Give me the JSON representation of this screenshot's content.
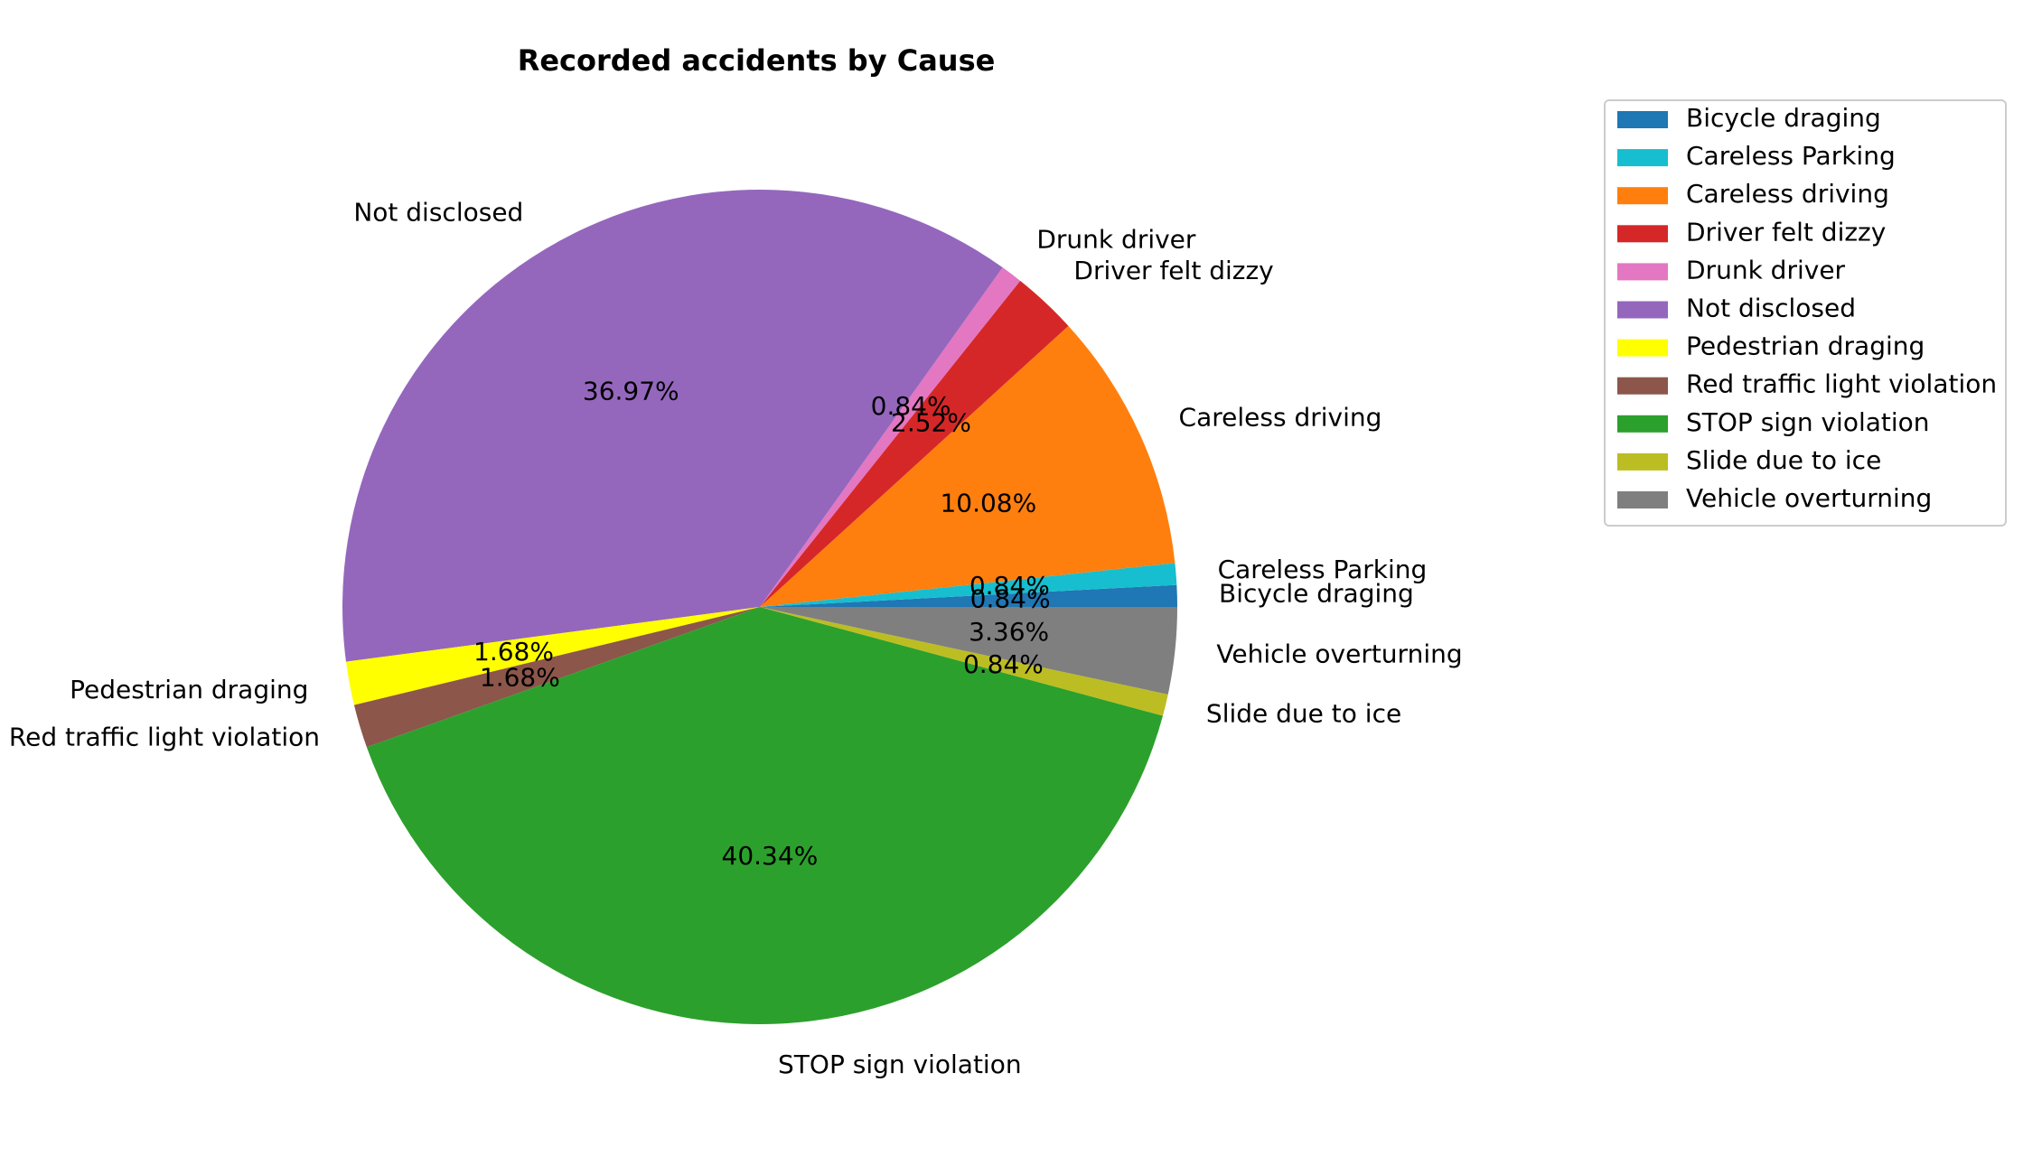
{
  "chart_data": {
    "type": "pie",
    "title": "Recorded accidents by Cause",
    "categories": [
      "Bicycle draging",
      "Careless Parking",
      "Careless driving",
      "Driver felt dizzy",
      "Drunk driver",
      "Not disclosed",
      "Pedestrian draging",
      "Red traffic light violation",
      "STOP sign violation",
      "Slide due to ice",
      "Vehicle overturning"
    ],
    "values": [
      0.84,
      0.84,
      10.08,
      2.52,
      0.84,
      36.97,
      1.68,
      1.68,
      40.34,
      0.84,
      3.36
    ],
    "percent_labels": [
      "0.84%",
      "0.84%",
      "10.08%",
      "2.52%",
      "0.84%",
      "36.97%",
      "1.68%",
      "1.68%",
      "40.34%",
      "0.84%",
      "3.36%"
    ],
    "colors": [
      "#1f77b4",
      "#17becf",
      "#ff7f0e",
      "#d62728",
      "#e377c2",
      "#9467bd",
      "#ffff00",
      "#8c564b",
      "#2ca02c",
      "#bcbd22",
      "#7f7f7f"
    ],
    "start_angle_deg": 0,
    "direction": "counterclockwise",
    "legend_position": "top-right"
  }
}
